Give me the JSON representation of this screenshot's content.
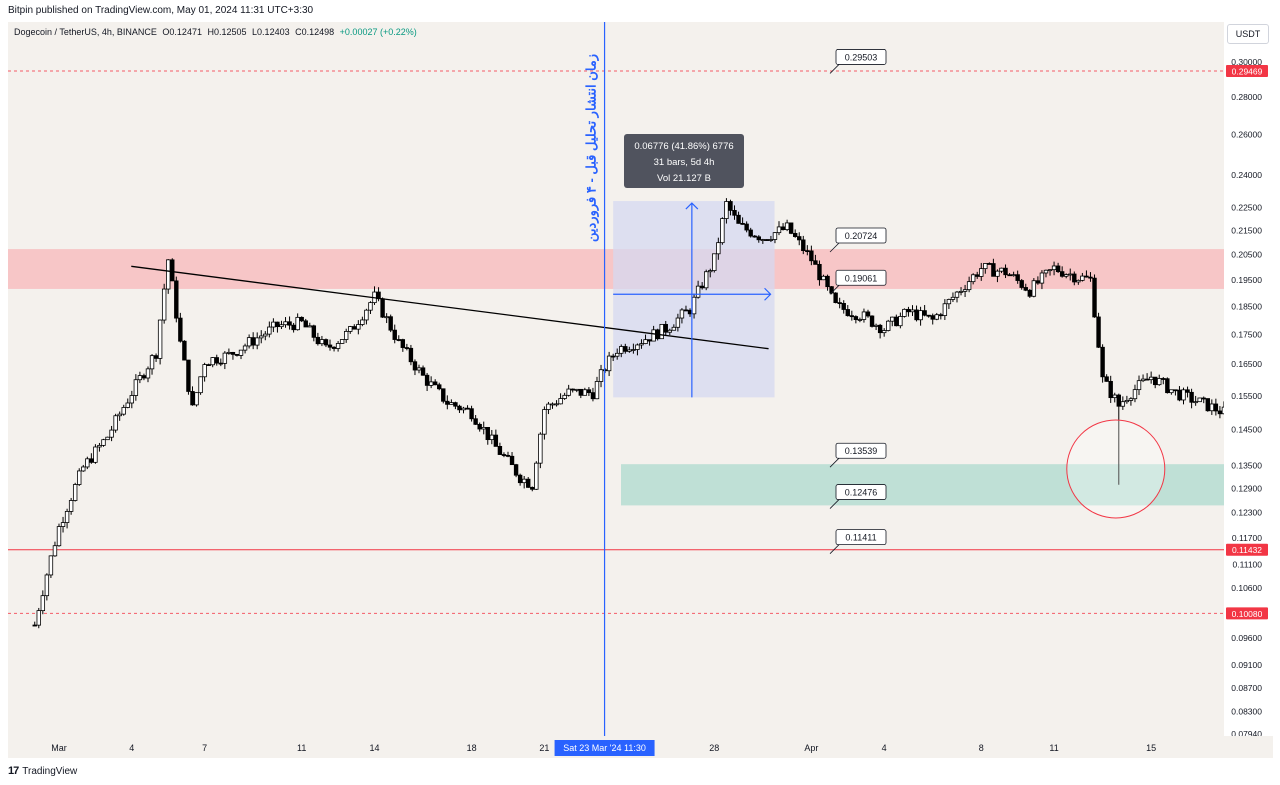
{
  "header": {
    "published": "Bitpin published on TradingView.com, May 01, 2024 11:31 UTC+3:30"
  },
  "symbol": {
    "name": "Dogecoin / TetherUS, 4h, BINANCE",
    "open": "O0.12471",
    "high": "H0.12505",
    "low": "L0.12403",
    "close": "C0.12498",
    "change": "+0.00027 (+0.22%)"
  },
  "currency_button": "USDT",
  "footer": {
    "logo": "17",
    "brand": "TradingView"
  },
  "colors": {
    "up": "#ffffff",
    "down": "#000000",
    "candle_outline": "#000000",
    "resistance_zone": "#f7c6c7",
    "support_zone": "#bfe0d6",
    "red_line": "#f23645",
    "blue": "#2962ff",
    "measure_box": "#d5d8f0"
  },
  "chart_data": {
    "type": "candlestick",
    "y_scale": "log",
    "ylim": [
      0.0779,
      0.3085
    ],
    "y_ticks": [
      "0.30000",
      "0.28000",
      "0.26000",
      "0.24000",
      "0.22500",
      "0.21500",
      "0.20500",
      "0.19500",
      "0.18500",
      "0.17500",
      "0.16500",
      "0.15500",
      "0.14500",
      "0.13500",
      "0.12900",
      "0.12300",
      "0.11700",
      "0.11100",
      "0.10600",
      "0.09600",
      "0.09100",
      "0.08700",
      "0.08300",
      "0.07940"
    ],
    "x_labels": [
      {
        "label": "Mar",
        "date": "2024-03-01"
      },
      {
        "label": "4",
        "date": "2024-03-04"
      },
      {
        "label": "7",
        "date": "2024-03-07"
      },
      {
        "label": "11",
        "date": "2024-03-11"
      },
      {
        "label": "14",
        "date": "2024-03-14"
      },
      {
        "label": "18",
        "date": "2024-03-18"
      },
      {
        "label": "21",
        "date": "2024-03-21"
      },
      {
        "label": "28",
        "date": "2024-03-28"
      },
      {
        "label": "Apr",
        "date": "2024-04-01"
      },
      {
        "label": "4",
        "date": "2024-04-04"
      },
      {
        "label": "8",
        "date": "2024-04-08"
      },
      {
        "label": "11",
        "date": "2024-04-11"
      },
      {
        "label": "15",
        "date": "2024-04-15"
      }
    ],
    "x_highlight": "Sat 23 Mar '24   11:30",
    "axis_price_tags": [
      {
        "value": "0.29469",
        "dashed": true
      },
      {
        "value": "0.11432",
        "dashed": false
      },
      {
        "value": "0.10080",
        "dashed": true
      }
    ],
    "level_labels": [
      "0.29503",
      "0.20724",
      "0.19061",
      "0.13539",
      "0.12476",
      "0.11411"
    ],
    "zones": [
      {
        "name": "resistance",
        "from": 0.1915,
        "to": 0.2072
      },
      {
        "name": "support",
        "from": 0.1248,
        "to": 0.1354
      }
    ],
    "vertical_marker": {
      "date": "2024-03-23 11:30",
      "text": "زمان انتشار تحلیل قبل - ۴ فروردین"
    },
    "measure": {
      "line1": "0.06776 (41.86%) 6776",
      "line2": "31 bars, 5d 4h",
      "line3": "Vol 21.127 B",
      "from_date": "2024-03-23 20:00",
      "to_date": "2024-03-29",
      "from_price": 0.1595,
      "to_price": 0.2265
    },
    "trendline": {
      "from": {
        "date": "2024-03-02",
        "price": 0.2125
      },
      "to": {
        "date": "2024-03-29",
        "price": 0.1715
      }
    },
    "price_path": [
      [
        "2024-02-29",
        0.0985
      ],
      [
        "2024-03-01",
        0.1195
      ],
      [
        "2024-03-02",
        0.1345
      ],
      [
        "2024-03-03",
        0.143
      ],
      [
        "2024-03-04",
        0.156
      ],
      [
        "2024-03-05",
        0.169
      ],
      [
        "2024-03-05 12:00",
        0.203
      ],
      [
        "2024-03-06",
        0.172
      ],
      [
        "2024-03-06 12:00",
        0.151
      ],
      [
        "2024-03-07",
        0.166
      ],
      [
        "2024-03-08",
        0.168
      ],
      [
        "2024-03-09",
        0.173
      ],
      [
        "2024-03-10",
        0.178
      ],
      [
        "2024-03-11",
        0.179
      ],
      [
        "2024-03-12",
        0.17
      ],
      [
        "2024-03-13",
        0.176
      ],
      [
        "2024-03-14",
        0.1885
      ],
      [
        "2024-03-15",
        0.172
      ],
      [
        "2024-03-16",
        0.161
      ],
      [
        "2024-03-17",
        0.153
      ],
      [
        "2024-03-18",
        0.15
      ],
      [
        "2024-03-19",
        0.14
      ],
      [
        "2024-03-20",
        0.132
      ],
      [
        "2024-03-20 12:00",
        0.13
      ],
      [
        "2024-03-21",
        0.151
      ],
      [
        "2024-03-22",
        0.156
      ],
      [
        "2024-03-23",
        0.156
      ],
      [
        "2024-03-23 12:00",
        0.164
      ],
      [
        "2024-03-24",
        0.17
      ],
      [
        "2024-03-25",
        0.173
      ],
      [
        "2024-03-26",
        0.177
      ],
      [
        "2024-03-27",
        0.184
      ],
      [
        "2024-03-28",
        0.203
      ],
      [
        "2024-03-28 12:00",
        0.2265
      ],
      [
        "2024-03-29",
        0.217
      ],
      [
        "2024-03-30",
        0.212
      ],
      [
        "2024-03-31",
        0.216
      ],
      [
        "2024-04-01",
        0.203
      ],
      [
        "2024-04-02",
        0.185
      ],
      [
        "2024-04-03",
        0.182
      ],
      [
        "2024-04-04",
        0.177
      ],
      [
        "2024-04-05",
        0.183
      ],
      [
        "2024-04-06",
        0.18
      ],
      [
        "2024-04-07",
        0.19
      ],
      [
        "2024-04-08",
        0.1995
      ],
      [
        "2024-04-09",
        0.198
      ],
      [
        "2024-04-10",
        0.191
      ],
      [
        "2024-04-11",
        0.1995
      ],
      [
        "2024-04-12",
        0.196
      ],
      [
        "2024-04-12 12:00",
        0.195
      ],
      [
        "2024-04-13",
        0.16
      ],
      [
        "2024-04-13 16:00",
        0.152
      ],
      [
        "2024-04-14",
        0.155
      ],
      [
        "2024-04-15",
        0.161
      ],
      [
        "2024-04-16",
        0.156
      ],
      [
        "2024-04-17",
        0.153
      ],
      [
        "2024-04-18",
        0.15
      ]
    ],
    "wick_low": {
      "date": "2024-04-13 16:00",
      "price": 0.13
    },
    "circle": {
      "date": "2024-04-13 16:00",
      "price": 0.1315
    }
  }
}
